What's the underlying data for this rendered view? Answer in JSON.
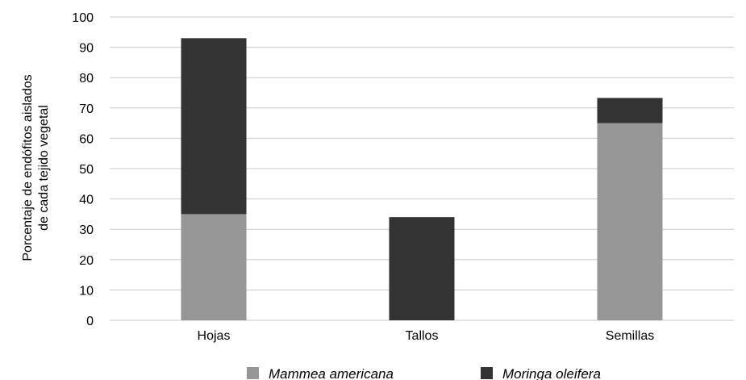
{
  "chart_data": {
    "type": "bar",
    "stacked": true,
    "categories": [
      "Hojas",
      "Tallos",
      "Semillas"
    ],
    "series": [
      {
        "name": "Mammea americana",
        "color": "#969696",
        "values": [
          35,
          0,
          65
        ]
      },
      {
        "name": "Moringa oleifera",
        "color": "#333333",
        "values": [
          58,
          34,
          8.3
        ]
      }
    ],
    "ylabel": [
      "Porcentaje de endófitos aislados",
      "de cada tejido vegetal"
    ],
    "xlabel": "",
    "ylim": [
      0,
      100
    ],
    "yticks": [
      "0",
      "10",
      "20",
      "30",
      "40",
      "50",
      "60",
      "70",
      "80",
      "90",
      "100"
    ],
    "grid": true,
    "legend_position": "bottom",
    "gridline_color": "#c8c8c8"
  }
}
